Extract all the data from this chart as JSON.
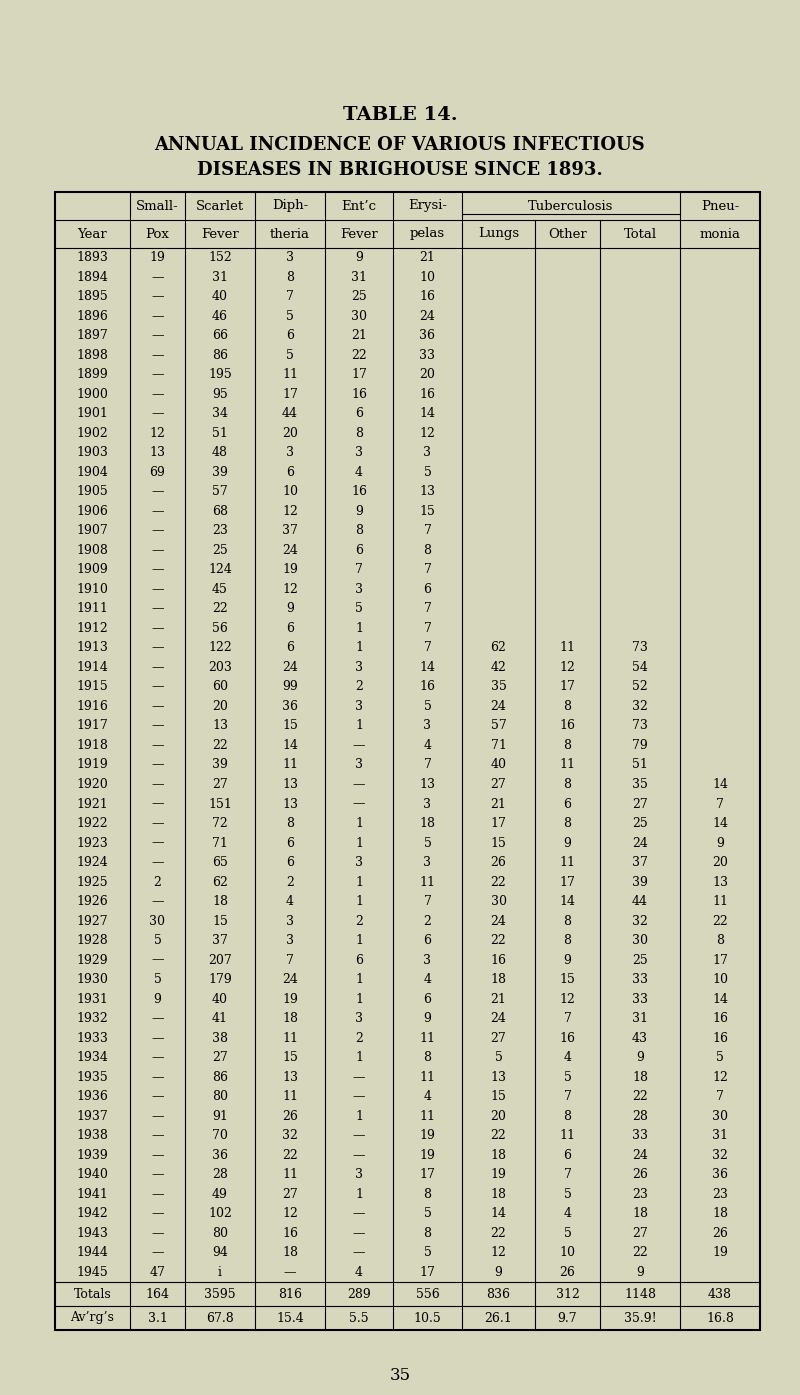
{
  "title1": "TABLE 14.",
  "title2": "ANNUAL INCIDENCE OF VARIOUS INFECTIOUS",
  "title3": "DISEASES IN BRIGHOUSE SINCE 1893.",
  "footer": "35",
  "bg_color": "#d6d7bc",
  "header_row1_left": [
    "Small-",
    "Scarlet",
    "Diph-",
    "Ent’c",
    "Erysi-"
  ],
  "header_row1_tb": "Tuberculosis",
  "header_row1_pneu": "Pneu-",
  "header_row2": [
    "Year",
    "Pox",
    "Fever",
    "theria",
    "Fever",
    "pelas",
    "Lungs",
    "Other",
    "Total",
    "monia"
  ],
  "rows": [
    [
      "1893",
      "19",
      "152",
      "3",
      "9",
      "21",
      "",
      "",
      "",
      ""
    ],
    [
      "1894",
      "—",
      "31",
      "8",
      "31",
      "10",
      "",
      "",
      "",
      ""
    ],
    [
      "1895",
      "—",
      "40",
      "7",
      "25",
      "16",
      "",
      "",
      "",
      ""
    ],
    [
      "1896",
      "—",
      "46",
      "5",
      "30",
      "24",
      "",
      "",
      "",
      ""
    ],
    [
      "1897",
      "—",
      "66",
      "6",
      "21",
      "36",
      "",
      "",
      "",
      ""
    ],
    [
      "1898",
      "—",
      "86",
      "5",
      "22",
      "33",
      "",
      "",
      "",
      ""
    ],
    [
      "1899",
      "—",
      "195",
      "11",
      "17",
      "20",
      "",
      "",
      "",
      ""
    ],
    [
      "1900",
      "—",
      "95",
      "17",
      "16",
      "16",
      "",
      "",
      "",
      ""
    ],
    [
      "1901",
      "—",
      "34",
      "44",
      "6",
      "14",
      "",
      "",
      "",
      ""
    ],
    [
      "1902",
      "12",
      "51",
      "20",
      "8",
      "12",
      "",
      "",
      "",
      ""
    ],
    [
      "1903",
      "13",
      "48",
      "3",
      "3",
      "3",
      "",
      "",
      "",
      ""
    ],
    [
      "1904",
      "69",
      "39",
      "6",
      "4",
      "5",
      "",
      "",
      "",
      ""
    ],
    [
      "1905",
      "—",
      "57",
      "10",
      "16",
      "13",
      "",
      "",
      "",
      ""
    ],
    [
      "1906",
      "—",
      "68",
      "12",
      "9",
      "15",
      "",
      "",
      "",
      ""
    ],
    [
      "1907",
      "—",
      "23",
      "37",
      "8",
      "7",
      "",
      "",
      "",
      ""
    ],
    [
      "1908",
      "—",
      "25",
      "24",
      "6",
      "8",
      "",
      "",
      "",
      ""
    ],
    [
      "1909",
      "—",
      "124",
      "19",
      "7",
      "7",
      "",
      "",
      "",
      ""
    ],
    [
      "1910",
      "—",
      "45",
      "12",
      "3",
      "6",
      "",
      "",
      "",
      ""
    ],
    [
      "1911",
      "—",
      "22",
      "9",
      "5",
      "7",
      "",
      "",
      "",
      ""
    ],
    [
      "1912",
      "—",
      "56",
      "6",
      "1",
      "7",
      "",
      "",
      "",
      ""
    ],
    [
      "1913",
      "—",
      "122",
      "6",
      "1",
      "7",
      "62",
      "11",
      "73",
      ""
    ],
    [
      "1914",
      "—",
      "203",
      "24",
      "3",
      "14",
      "42",
      "12",
      "54",
      ""
    ],
    [
      "1915",
      "—",
      "60",
      "99",
      "2",
      "16",
      "35",
      "17",
      "52",
      ""
    ],
    [
      "1916",
      "—",
      "20",
      "36",
      "3",
      "5",
      "24",
      "8",
      "32",
      ""
    ],
    [
      "1917",
      "—",
      "13",
      "15",
      "1",
      "3",
      "57",
      "16",
      "73",
      ""
    ],
    [
      "1918",
      "—",
      "22",
      "14",
      "—",
      "4",
      "71",
      "8",
      "79",
      ""
    ],
    [
      "1919",
      "—",
      "39",
      "11",
      "3",
      "7",
      "40",
      "11",
      "51",
      ""
    ],
    [
      "1920",
      "—",
      "27",
      "13",
      "—",
      "13",
      "27",
      "8",
      "35",
      "14"
    ],
    [
      "1921",
      "—",
      "151",
      "13",
      "—",
      "3",
      "21",
      "6",
      "27",
      "7"
    ],
    [
      "1922",
      "—",
      "72",
      "8",
      "1",
      "18",
      "17",
      "8",
      "25",
      "14"
    ],
    [
      "1923",
      "—",
      "71",
      "6",
      "1",
      "5",
      "15",
      "9",
      "24",
      "9"
    ],
    [
      "1924",
      "—",
      "65",
      "6",
      "3",
      "3",
      "26",
      "11",
      "37",
      "20"
    ],
    [
      "1925",
      "2",
      "62",
      "2",
      "1",
      "11",
      "22",
      "17",
      "39",
      "13"
    ],
    [
      "1926",
      "—",
      "18",
      "4",
      "1",
      "7",
      "30",
      "14",
      "44",
      "11"
    ],
    [
      "1927",
      "30",
      "15",
      "3",
      "2",
      "2",
      "24",
      "8",
      "32",
      "22"
    ],
    [
      "1928",
      "5",
      "37",
      "3",
      "1",
      "6",
      "22",
      "8",
      "30",
      "8"
    ],
    [
      "1929",
      "—",
      "207",
      "7",
      "6",
      "3",
      "16",
      "9",
      "25",
      "17"
    ],
    [
      "1930",
      "5",
      "179",
      "24",
      "1",
      "4",
      "18",
      "15",
      "33",
      "10"
    ],
    [
      "1931",
      "9",
      "40",
      "19",
      "1",
      "6",
      "21",
      "12",
      "33",
      "14"
    ],
    [
      "1932",
      "—",
      "41",
      "18",
      "3",
      "9",
      "24",
      "7",
      "31",
      "16"
    ],
    [
      "1933",
      "—",
      "38",
      "11",
      "2",
      "11",
      "27",
      "16",
      "43",
      "16"
    ],
    [
      "1934",
      "—",
      "27",
      "15",
      "1",
      "8",
      "5",
      "4",
      "9",
      "5"
    ],
    [
      "1935",
      "—",
      "86",
      "13",
      "—",
      "11",
      "13",
      "5",
      "18",
      "12"
    ],
    [
      "1936",
      "—",
      "80",
      "11",
      "—",
      "4",
      "15",
      "7",
      "22",
      "7"
    ],
    [
      "1937",
      "—",
      "91",
      "26",
      "1",
      "11",
      "20",
      "8",
      "28",
      "30"
    ],
    [
      "1938",
      "—",
      "70",
      "32",
      "—",
      "19",
      "22",
      "11",
      "33",
      "31"
    ],
    [
      "1939",
      "—",
      "36",
      "22",
      "—",
      "19",
      "18",
      "6",
      "24",
      "32"
    ],
    [
      "1940",
      "—",
      "28",
      "11",
      "3",
      "17",
      "19",
      "7",
      "26",
      "36"
    ],
    [
      "1941",
      "—",
      "49",
      "27",
      "1",
      "8",
      "18",
      "5",
      "23",
      "23"
    ],
    [
      "1942",
      "—",
      "102",
      "12",
      "—",
      "5",
      "14",
      "4",
      "18",
      "18"
    ],
    [
      "1943",
      "—",
      "80",
      "16",
      "—",
      "8",
      "22",
      "5",
      "27",
      "26"
    ],
    [
      "1944",
      "—",
      "94",
      "18",
      "—",
      "5",
      "12",
      "10",
      "22",
      "19"
    ],
    [
      "1945",
      "47",
      "i",
      "—",
      "4",
      "17",
      "9",
      "26",
      "9",
      ""
    ]
  ],
  "totals_row": [
    "Totals",
    "164",
    "3595",
    "816",
    "289",
    "556",
    "836",
    "312",
    "1148",
    "438"
  ],
  "averages_row": [
    "Av’rg’s",
    "3.1",
    "67.8",
    "15.4",
    "5.5",
    "10.5",
    "26.1",
    "9.7",
    "35.9!",
    "16.8"
  ]
}
